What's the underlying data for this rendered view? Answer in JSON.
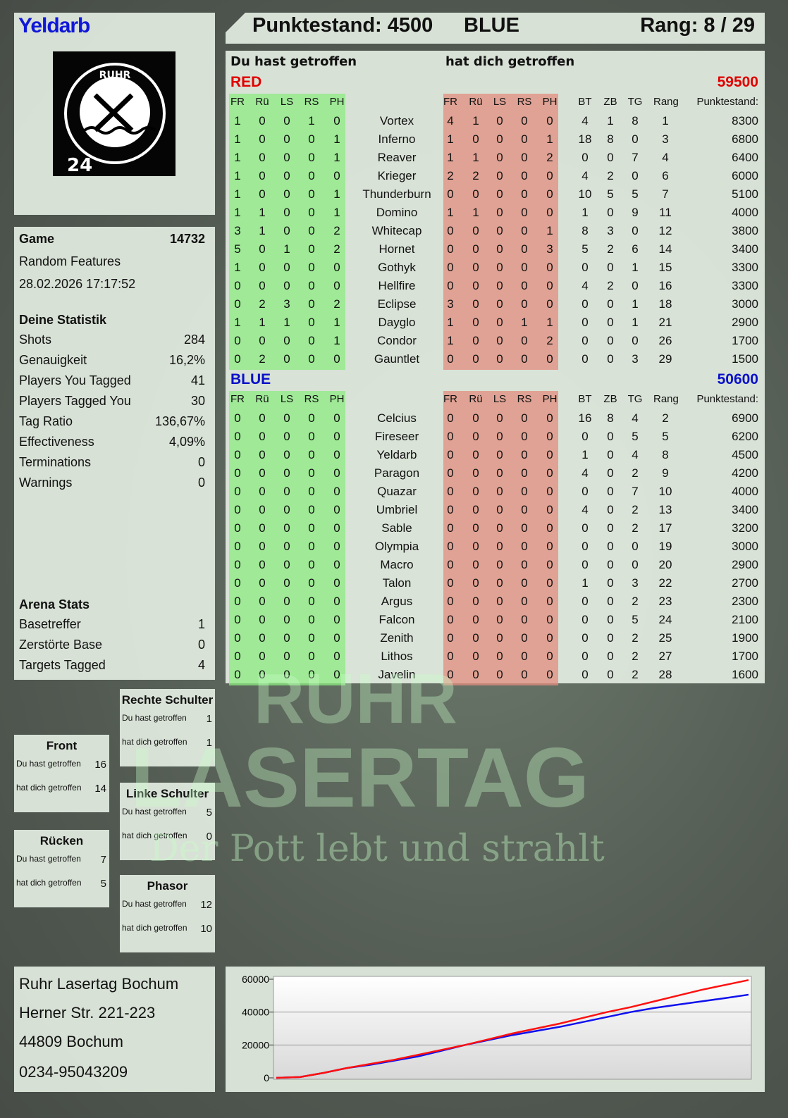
{
  "player": {
    "name": "Yeldarb",
    "logo_text": "RUHR LASERTAG",
    "logo_badge": "24"
  },
  "header": {
    "score_label": "Punktestand: 4500",
    "team": "BLUE",
    "rank_label": "Rang: 8 / 29"
  },
  "board": {
    "you_hit_label": "Du hast getroffen",
    "hit_you_label": "hat dich getroffen",
    "columns": [
      "FR",
      "Rü",
      "LS",
      "RS",
      "PH",
      "",
      "FR",
      "Rü",
      "LS",
      "RS",
      "PH",
      "BT",
      "ZB",
      "TG",
      "Rang",
      "Punktestand:"
    ],
    "teams": [
      {
        "name": "RED",
        "score": "59500",
        "color": "#e00000",
        "rows": [
          [
            "1",
            "0",
            "0",
            "1",
            "0",
            "Vortex",
            "4",
            "1",
            "0",
            "0",
            "0",
            "4",
            "1",
            "8",
            "1",
            "8300"
          ],
          [
            "1",
            "0",
            "0",
            "0",
            "1",
            "Inferno",
            "1",
            "0",
            "0",
            "0",
            "1",
            "18",
            "8",
            "0",
            "3",
            "6800"
          ],
          [
            "1",
            "0",
            "0",
            "0",
            "1",
            "Reaver",
            "1",
            "1",
            "0",
            "0",
            "2",
            "0",
            "0",
            "7",
            "4",
            "6400"
          ],
          [
            "1",
            "0",
            "0",
            "0",
            "0",
            "Krieger",
            "2",
            "2",
            "0",
            "0",
            "0",
            "4",
            "2",
            "0",
            "6",
            "6000"
          ],
          [
            "1",
            "0",
            "0",
            "0",
            "1",
            "Thunderburn",
            "0",
            "0",
            "0",
            "0",
            "0",
            "10",
            "5",
            "5",
            "7",
            "5100"
          ],
          [
            "1",
            "1",
            "0",
            "0",
            "1",
            "Domino",
            "1",
            "1",
            "0",
            "0",
            "0",
            "1",
            "0",
            "9",
            "11",
            "4000"
          ],
          [
            "3",
            "1",
            "0",
            "0",
            "2",
            "Whitecap",
            "0",
            "0",
            "0",
            "0",
            "1",
            "8",
            "3",
            "0",
            "12",
            "3800"
          ],
          [
            "5",
            "0",
            "1",
            "0",
            "2",
            "Hornet",
            "0",
            "0",
            "0",
            "0",
            "3",
            "5",
            "2",
            "6",
            "14",
            "3400"
          ],
          [
            "1",
            "0",
            "0",
            "0",
            "0",
            "Gothyk",
            "0",
            "0",
            "0",
            "0",
            "0",
            "0",
            "0",
            "1",
            "15",
            "3300"
          ],
          [
            "0",
            "0",
            "0",
            "0",
            "0",
            "Hellfire",
            "0",
            "0",
            "0",
            "0",
            "0",
            "4",
            "2",
            "0",
            "16",
            "3300"
          ],
          [
            "0",
            "2",
            "3",
            "0",
            "2",
            "Eclipse",
            "3",
            "0",
            "0",
            "0",
            "0",
            "0",
            "0",
            "1",
            "18",
            "3000"
          ],
          [
            "1",
            "1",
            "1",
            "0",
            "1",
            "Dayglo",
            "1",
            "0",
            "0",
            "1",
            "1",
            "0",
            "0",
            "1",
            "21",
            "2900"
          ],
          [
            "0",
            "0",
            "0",
            "0",
            "1",
            "Condor",
            "1",
            "0",
            "0",
            "0",
            "2",
            "0",
            "0",
            "0",
            "26",
            "1700"
          ],
          [
            "0",
            "2",
            "0",
            "0",
            "0",
            "Gauntlet",
            "0",
            "0",
            "0",
            "0",
            "0",
            "0",
            "0",
            "3",
            "29",
            "1500"
          ]
        ]
      },
      {
        "name": "BLUE",
        "score": "50600",
        "color": "#0a10c8",
        "rows": [
          [
            "0",
            "0",
            "0",
            "0",
            "0",
            "Celcius",
            "0",
            "0",
            "0",
            "0",
            "0",
            "16",
            "8",
            "4",
            "2",
            "6900"
          ],
          [
            "0",
            "0",
            "0",
            "0",
            "0",
            "Fireseer",
            "0",
            "0",
            "0",
            "0",
            "0",
            "0",
            "0",
            "5",
            "5",
            "6200"
          ],
          [
            "0",
            "0",
            "0",
            "0",
            "0",
            "Yeldarb",
            "0",
            "0",
            "0",
            "0",
            "0",
            "1",
            "0",
            "4",
            "8",
            "4500"
          ],
          [
            "0",
            "0",
            "0",
            "0",
            "0",
            "Paragon",
            "0",
            "0",
            "0",
            "0",
            "0",
            "4",
            "0",
            "2",
            "9",
            "4200"
          ],
          [
            "0",
            "0",
            "0",
            "0",
            "0",
            "Quazar",
            "0",
            "0",
            "0",
            "0",
            "0",
            "0",
            "0",
            "7",
            "10",
            "4000"
          ],
          [
            "0",
            "0",
            "0",
            "0",
            "0",
            "Umbriel",
            "0",
            "0",
            "0",
            "0",
            "0",
            "4",
            "0",
            "2",
            "13",
            "3400"
          ],
          [
            "0",
            "0",
            "0",
            "0",
            "0",
            "Sable",
            "0",
            "0",
            "0",
            "0",
            "0",
            "0",
            "0",
            "2",
            "17",
            "3200"
          ],
          [
            "0",
            "0",
            "0",
            "0",
            "0",
            "Olympia",
            "0",
            "0",
            "0",
            "0",
            "0",
            "0",
            "0",
            "0",
            "19",
            "3000"
          ],
          [
            "0",
            "0",
            "0",
            "0",
            "0",
            "Macro",
            "0",
            "0",
            "0",
            "0",
            "0",
            "0",
            "0",
            "0",
            "20",
            "2900"
          ],
          [
            "0",
            "0",
            "0",
            "0",
            "0",
            "Talon",
            "0",
            "0",
            "0",
            "0",
            "0",
            "1",
            "0",
            "3",
            "22",
            "2700"
          ],
          [
            "0",
            "0",
            "0",
            "0",
            "0",
            "Argus",
            "0",
            "0",
            "0",
            "0",
            "0",
            "0",
            "0",
            "2",
            "23",
            "2300"
          ],
          [
            "0",
            "0",
            "0",
            "0",
            "0",
            "Falcon",
            "0",
            "0",
            "0",
            "0",
            "0",
            "0",
            "0",
            "5",
            "24",
            "2100"
          ],
          [
            "0",
            "0",
            "0",
            "0",
            "0",
            "Zenith",
            "0",
            "0",
            "0",
            "0",
            "0",
            "0",
            "0",
            "2",
            "25",
            "1900"
          ],
          [
            "0",
            "0",
            "0",
            "0",
            "0",
            "Lithos",
            "0",
            "0",
            "0",
            "0",
            "0",
            "0",
            "0",
            "2",
            "27",
            "1700"
          ],
          [
            "0",
            "0",
            "0",
            "0",
            "0",
            "Javelin",
            "0",
            "0",
            "0",
            "0",
            "0",
            "0",
            "0",
            "2",
            "28",
            "1600"
          ]
        ]
      }
    ]
  },
  "game": {
    "label": "Game",
    "id": "14732",
    "mode": "Random Features",
    "datetime": "28.02.2026 17:17:52"
  },
  "stats": {
    "title": "Deine Statistik",
    "items": [
      {
        "label": "Shots",
        "value": "284"
      },
      {
        "label": "Genauigkeit",
        "value": "16,2%"
      },
      {
        "label": "Players You Tagged",
        "value": "41"
      },
      {
        "label": "Players Tagged You",
        "value": "30"
      },
      {
        "label": "Tag Ratio",
        "value": "136,67%"
      },
      {
        "label": "Effectiveness",
        "value": "4,09%"
      },
      {
        "label": "Terminations",
        "value": "0"
      },
      {
        "label": "Warnings",
        "value": "0"
      }
    ]
  },
  "arena": {
    "title": "Arena Stats",
    "items": [
      {
        "label": "Basetreffer",
        "value": "1"
      },
      {
        "label": "Zerstörte Base",
        "value": "0"
      },
      {
        "label": "Targets Tagged",
        "value": "4"
      }
    ]
  },
  "hits": [
    {
      "title": "Rechte Schulter",
      "you_hit": "1",
      "hit_you": "1"
    },
    {
      "title": "Front",
      "you_hit": "16",
      "hit_you": "14"
    },
    {
      "title": "Linke Schulter",
      "you_hit": "5",
      "hit_you": "0"
    },
    {
      "title": "Rücken",
      "you_hit": "7",
      "hit_you": "5"
    },
    {
      "title": "Phasor",
      "you_hit": "12",
      "hit_you": "10"
    }
  ],
  "hit_labels": {
    "you_hit": "Du hast getroffen",
    "hit_you": "hat dich getroffen"
  },
  "address": [
    "Ruhr Lasertag Bochum",
    "Herner Str. 221-223",
    "44809 Bochum",
    "0234-95043209"
  ],
  "watermark": {
    "line1": "RUHR",
    "line2": "LASERTAG",
    "slogan": "Der Pott lebt und strahlt"
  },
  "chart_data": {
    "type": "line",
    "ylim": [
      0,
      60000
    ],
    "yticks": [
      "0",
      "20000",
      "40000",
      "60000"
    ],
    "grid": true,
    "series": [
      {
        "color": "#ff1010",
        "values": [
          0,
          500,
          3000,
          6000,
          8500,
          11000,
          14000,
          17000,
          20000,
          23500,
          27000,
          30000,
          33000,
          36500,
          40000,
          43000,
          46500,
          50000,
          53500,
          56500,
          59500
        ]
      },
      {
        "color": "#1010ee",
        "values": [
          0,
          500,
          3000,
          6000,
          8000,
          10500,
          13000,
          16500,
          20000,
          23000,
          26000,
          28500,
          31000,
          34000,
          37000,
          40000,
          42500,
          44500,
          46500,
          48500,
          50600
        ]
      }
    ]
  }
}
